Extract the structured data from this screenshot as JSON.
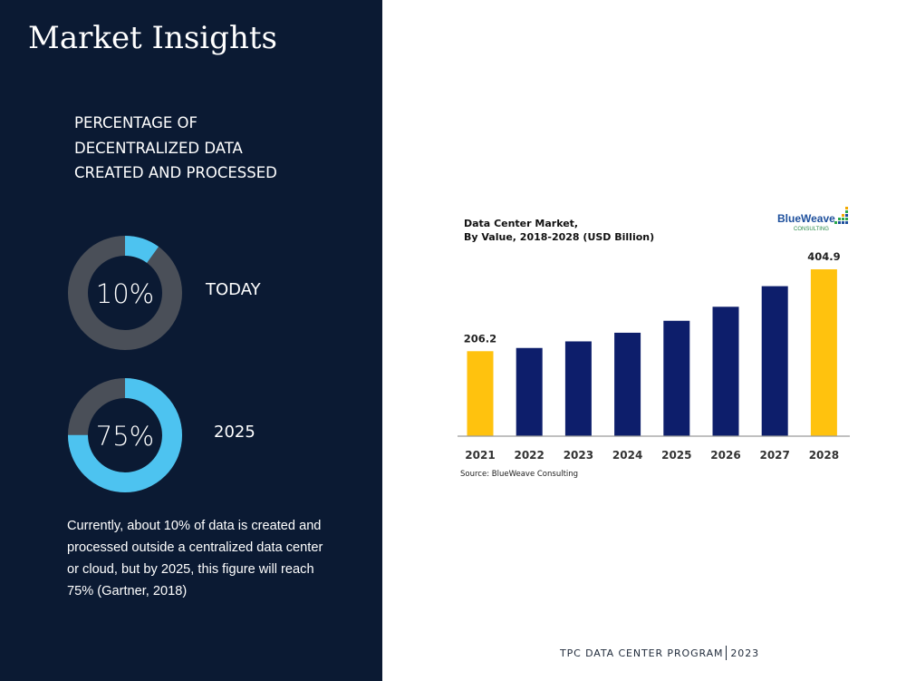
{
  "slide": {
    "title": "Market Insights",
    "subtitle_lines": [
      "PERCENTAGE OF",
      "DECENTRALIZED DATA",
      "CREATED AND PROCESSED"
    ],
    "donuts": [
      {
        "value_label": "10%",
        "fraction": 0.1,
        "caption": "TODAY"
      },
      {
        "value_label": "75%",
        "fraction": 0.75,
        "caption": "2025"
      }
    ],
    "description": "Currently, about 10% of data is created and processed outside a centralized data center or cloud, but by 2025, this figure will reach 75% (Gartner, 2018)",
    "footer": {
      "program": "TPC DATA CENTER PROGRAM",
      "year": "2023"
    },
    "colors": {
      "panel_bg": "#0b1a33",
      "donut_fill": "#4dc3f0",
      "donut_track": "#4a4f58"
    }
  },
  "chart_data": {
    "type": "bar",
    "title_lines": [
      "Data Center Market,",
      "By Value, 2018-2028 (USD Billion)"
    ],
    "brand": {
      "name": "BlueWeave",
      "tagline": "CONSULTING"
    },
    "source": "Source: BlueWeave Consulting",
    "categories": [
      "2021",
      "2022",
      "2023",
      "2024",
      "2025",
      "2026",
      "2027",
      "2028"
    ],
    "values": [
      206.2,
      214,
      230,
      251,
      280,
      314,
      364,
      404.9
    ],
    "data_labels": [
      "206.2",
      "",
      "",
      "",
      "",
      "",
      "",
      "404.9"
    ],
    "highlight": [
      true,
      false,
      false,
      false,
      false,
      false,
      false,
      true
    ],
    "colors": {
      "bar": "#0d1e6b",
      "highlight": "#ffc20e"
    },
    "ylim": [
      0,
      404.9
    ],
    "grid": false
  }
}
